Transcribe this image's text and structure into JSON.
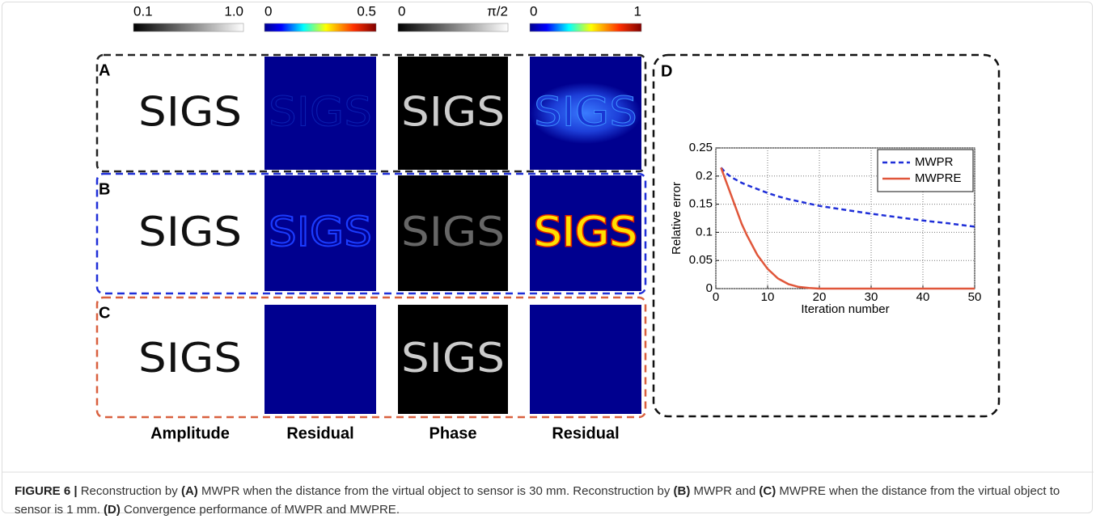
{
  "colorbars": [
    {
      "min": "0.1",
      "max": "1.0",
      "colormap": "gray"
    },
    {
      "min": "0",
      "max": "0.5",
      "colormap": "jet"
    },
    {
      "min": "0",
      "max": "π/2",
      "colormap": "gray"
    },
    {
      "min": "0",
      "max": "1",
      "colormap": "jet"
    }
  ],
  "rows": [
    {
      "label": "A",
      "border_color": "#222222",
      "texts": [
        "SIGS",
        "SIGS",
        "SIGS",
        "SIGS"
      ]
    },
    {
      "label": "B",
      "border_color": "#1f2fd8",
      "texts": [
        "SIGS",
        "SIGS",
        "SIGS",
        "SIGS"
      ]
    },
    {
      "label": "C",
      "border_color": "#d9603f",
      "texts": [
        "SIGS",
        null,
        "SIGS",
        null
      ]
    }
  ],
  "column_labels": [
    "Amplitude",
    "Residual",
    "Phase",
    "Residual"
  ],
  "panel_label": "D",
  "chart_data": {
    "type": "line",
    "ylabel": "Relative error",
    "xlabel": "Iteration number",
    "x": [
      1,
      2,
      3,
      4,
      5,
      6,
      8,
      10,
      12,
      14,
      16,
      18,
      20,
      25,
      30,
      35,
      40,
      45,
      50
    ],
    "series": [
      {
        "name": "MWPR",
        "color": "#1f2fd8",
        "dashed": true,
        "values": [
          0.215,
          0.205,
          0.198,
          0.193,
          0.188,
          0.184,
          0.177,
          0.17,
          0.164,
          0.159,
          0.155,
          0.151,
          0.147,
          0.14,
          0.133,
          0.127,
          0.121,
          0.116,
          0.11
        ]
      },
      {
        "name": "MWPRE",
        "color": "#e0563a",
        "dashed": false,
        "values": [
          0.215,
          0.19,
          0.165,
          0.14,
          0.115,
          0.095,
          0.06,
          0.035,
          0.018,
          0.008,
          0.003,
          0.001,
          0,
          0,
          0,
          0,
          0,
          0,
          0
        ]
      }
    ],
    "xlim": [
      0,
      50
    ],
    "xticks": [
      0,
      10,
      20,
      30,
      40,
      50
    ],
    "ylim": [
      0,
      0.25
    ],
    "yticks": [
      0,
      0.05,
      0.1,
      0.15,
      0.2,
      0.25
    ],
    "grid": true,
    "legend": "upper right"
  },
  "caption": [
    {
      "text": "FIGURE 6 |",
      "bold": true
    },
    {
      "text": " Reconstruction by ",
      "bold": false
    },
    {
      "text": "(A)",
      "bold": true
    },
    {
      "text": " MWPR when the distance from the virtual object to sensor is 30 mm. Reconstruction by ",
      "bold": false
    },
    {
      "text": "(B)",
      "bold": true
    },
    {
      "text": " MWPR and ",
      "bold": false
    },
    {
      "text": "(C)",
      "bold": true
    },
    {
      "text": " MWPRE when the distance from the virtual object to sensor is 1 mm. ",
      "bold": false
    },
    {
      "text": "(D)",
      "bold": true
    },
    {
      "text": " Convergence performance of MWPR and MWPRE.",
      "bold": false
    }
  ]
}
